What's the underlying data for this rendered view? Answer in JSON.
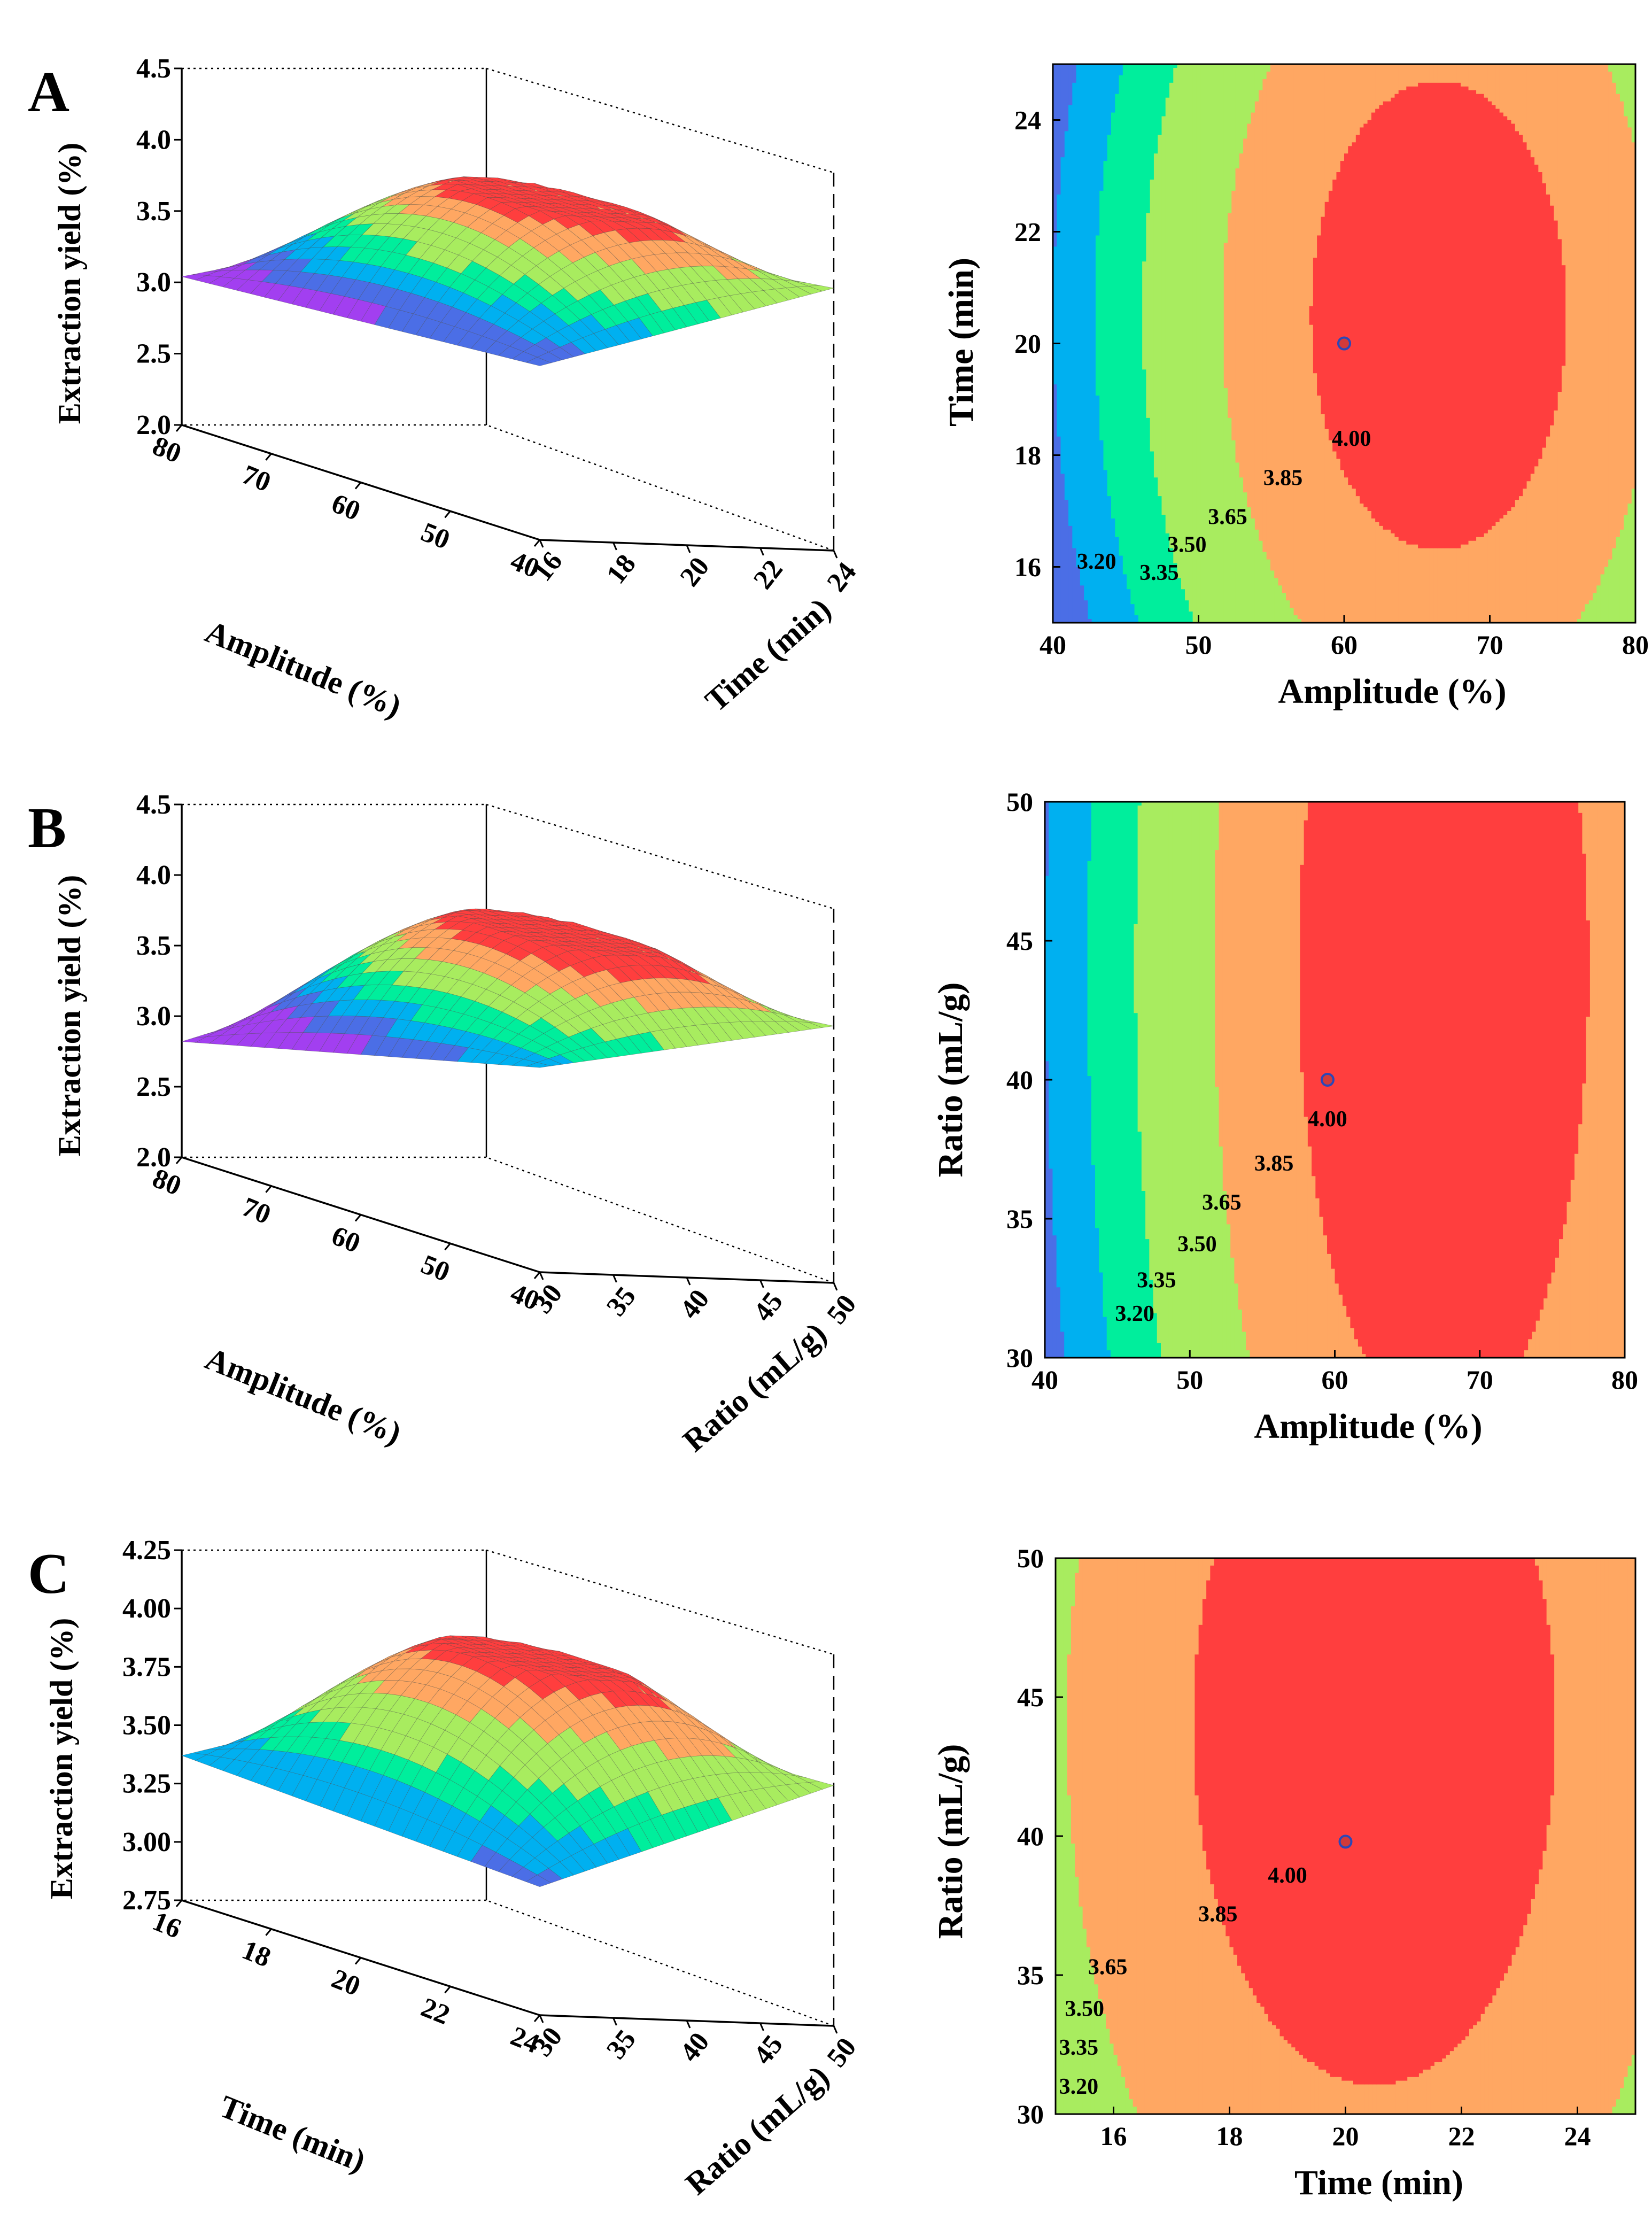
{
  "figure": {
    "colors": {
      "levels": [
        "#000000",
        "#5b0d73",
        "#a23ff0",
        "#4b6ee6",
        "#00b0f0",
        "#00ee9c",
        "#a8ec5f",
        "#ffa762",
        "#ff3e3e"
      ],
      "mesh": "#4a4a4a",
      "center_point": "#d23a3a",
      "center_point_stroke": "#2b47b8"
    }
  },
  "chart_data": [
    {
      "id": "A-surface",
      "type": "surface3d",
      "panel_label": "A",
      "zlabel": "Extraction yield (%)",
      "z_ticks": [
        "2.0",
        "2.5",
        "3.0",
        "3.5",
        "4.0",
        "4.5"
      ],
      "zlim": [
        2.0,
        4.5
      ],
      "x_axis": {
        "label": "Amplitude (%)",
        "range": [
          80,
          40
        ],
        "ticks": [
          "80",
          "70",
          "60",
          "50",
          "40"
        ]
      },
      "y_axis": {
        "label": "Time (min)",
        "range": [
          16,
          24
        ],
        "ticks": [
          "16",
          "18",
          "20",
          "22",
          "24"
        ]
      },
      "corner_values": {
        "front": 3.22,
        "left": 3.04,
        "right": 3.84,
        "back": 3.52
      },
      "peak": 4.06
    },
    {
      "id": "A-contour",
      "type": "contour",
      "xlabel": "Amplitude (%)",
      "ylabel": "Time (min)",
      "xlim": [
        40,
        80
      ],
      "ylim": [
        15,
        25
      ],
      "x_ticks": [
        "40",
        "50",
        "60",
        "70",
        "80"
      ],
      "y_ticks": [
        "16",
        "18",
        "20",
        "22",
        "24"
      ],
      "levels": [
        "3.20",
        "3.35",
        "3.50",
        "3.65",
        "3.85",
        "4.00"
      ],
      "center_point": {
        "x": 60,
        "y": 20
      },
      "optimum": {
        "x": 66.5,
        "y": 20.5
      },
      "scale": {
        "x": 23,
        "y": 11
      },
      "max_value": 4.08,
      "label_points": [
        {
          "text": "4.00",
          "x": 60.5,
          "y": 18.3
        },
        {
          "text": "3.85",
          "x": 55.8,
          "y": 17.6
        },
        {
          "text": "3.65",
          "x": 52.0,
          "y": 16.9
        },
        {
          "text": "3.50",
          "x": 49.2,
          "y": 16.4
        },
        {
          "text": "3.35",
          "x": 47.3,
          "y": 15.9
        },
        {
          "text": "3.20",
          "x": 43.0,
          "y": 16.1
        }
      ]
    },
    {
      "id": "B-surface",
      "type": "surface3d",
      "panel_label": "B",
      "zlabel": "Extraction yield (%)",
      "z_ticks": [
        "2.0",
        "2.5",
        "3.0",
        "3.5",
        "4.0",
        "4.5"
      ],
      "zlim": [
        2.0,
        4.5
      ],
      "x_axis": {
        "label": "Amplitude (%)",
        "range": [
          80,
          40
        ],
        "ticks": [
          "80",
          "70",
          "60",
          "50",
          "40"
        ]
      },
      "y_axis": {
        "label": "Ratio (mL/g)",
        "range": [
          30,
          50
        ],
        "ticks": [
          "30",
          "35",
          "40",
          "45",
          "50"
        ]
      },
      "corner_values": {
        "front": 3.45,
        "left": 2.82,
        "right": 3.82,
        "back": 3.54
      },
      "peak": 4.1
    },
    {
      "id": "B-contour",
      "type": "contour",
      "xlabel": "Amplitude (%)",
      "ylabel": "Ratio (mL/g)",
      "xlim": [
        40,
        80
      ],
      "ylim": [
        30,
        50
      ],
      "x_ticks": [
        "40",
        "50",
        "60",
        "70",
        "80"
      ],
      "y_ticks": [
        "30",
        "35",
        "40",
        "45",
        "50"
      ],
      "levels": [
        "3.20",
        "3.35",
        "3.50",
        "3.65",
        "3.85",
        "4.00"
      ],
      "center_point": {
        "x": 59.5,
        "y": 40
      },
      "optimum": {
        "x": 67.5,
        "y": 44
      },
      "scale": {
        "x": 23.5,
        "y": 39
      },
      "max_value": 4.1,
      "label_points": [
        {
          "text": "4.00",
          "x": 59.5,
          "y": 38.6
        },
        {
          "text": "3.85",
          "x": 55.8,
          "y": 37.0
        },
        {
          "text": "3.65",
          "x": 52.2,
          "y": 35.6
        },
        {
          "text": "3.50",
          "x": 50.5,
          "y": 34.1
        },
        {
          "text": "3.35",
          "x": 47.7,
          "y": 32.8
        },
        {
          "text": "3.20",
          "x": 46.2,
          "y": 31.6
        }
      ]
    },
    {
      "id": "C-surface",
      "type": "surface3d",
      "panel_label": "C",
      "zlabel": "Extraction yield (%)",
      "z_ticks": [
        "2.75",
        "3.00",
        "3.25",
        "3.50",
        "3.75",
        "4.00",
        "4.25"
      ],
      "zlim": [
        2.75,
        4.25
      ],
      "x_axis": {
        "label": "Time (min)",
        "range": [
          16,
          24
        ],
        "ticks": [
          "16",
          "18",
          "20",
          "22",
          "24"
        ]
      },
      "y_axis": {
        "label": "Ratio (mL/g)",
        "range": [
          30,
          50
        ],
        "ticks": [
          "30",
          "35",
          "40",
          "45",
          "50"
        ]
      },
      "corner_values": {
        "front": 3.3,
        "left": 3.37,
        "right": 3.78,
        "back": 3.72
      },
      "peak": 4.06
    },
    {
      "id": "C-contour",
      "type": "contour",
      "xlabel": "Time (min)",
      "ylabel": "Ratio (mL/g)",
      "xlim": [
        15,
        25
      ],
      "ylim": [
        30,
        50
      ],
      "x_ticks": [
        "16",
        "18",
        "20",
        "22",
        "24"
      ],
      "y_ticks": [
        "30",
        "35",
        "40",
        "45",
        "50"
      ],
      "levels": [
        "3.20",
        "3.35",
        "3.50",
        "3.65",
        "3.85",
        "4.00"
      ],
      "center_point": {
        "x": 20,
        "y": 39.8
      },
      "optimum": {
        "x": 20.5,
        "y": 44
      },
      "scale": {
        "x": 8.2,
        "y": 34
      },
      "max_value": 4.08,
      "label_points": [
        {
          "text": "4.00",
          "x": 19.0,
          "y": 38.6
        },
        {
          "text": "3.85",
          "x": 17.8,
          "y": 37.2
        },
        {
          "text": "3.65",
          "x": 15.9,
          "y": 35.3
        },
        {
          "text": "3.50",
          "x": 15.5,
          "y": 33.8
        },
        {
          "text": "3.35",
          "x": 15.4,
          "y": 32.4
        },
        {
          "text": "3.20",
          "x": 15.4,
          "y": 31.0
        }
      ]
    }
  ]
}
